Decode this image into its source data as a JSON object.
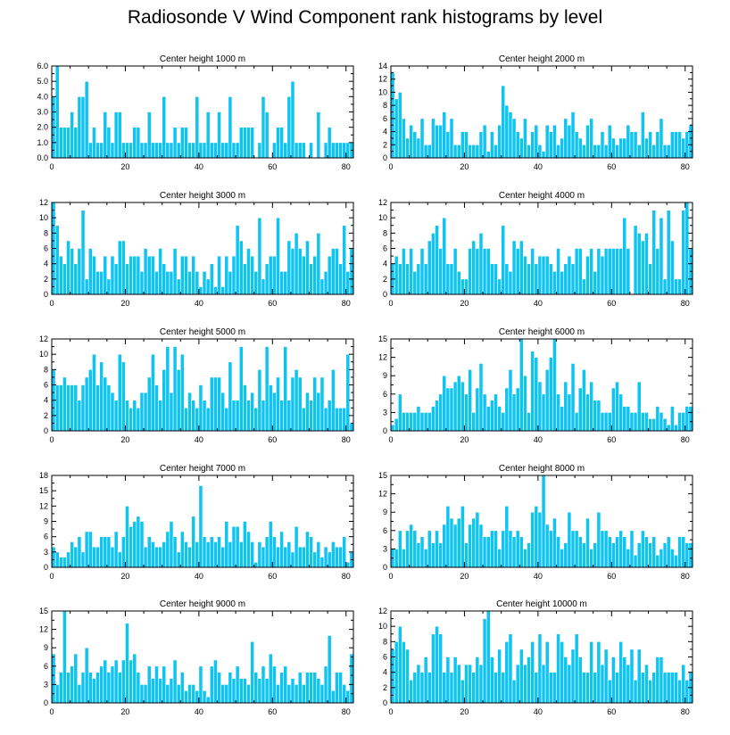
{
  "title": "Radiosonde V Wind Component rank histograms by level",
  "colors": {
    "bar": "#10c4f2",
    "bar_edge": "#ffffff",
    "axis": "#000000"
  },
  "chart_data": [
    {
      "type": "bar",
      "title": "Center height 1000 m",
      "xlim": [
        0,
        82
      ],
      "ylim": [
        0,
        6
      ],
      "x_ticks": [
        0,
        20,
        40,
        60,
        80
      ],
      "y_ticks": [
        "0.0",
        "1.0",
        "2.0",
        "3.0",
        "4.0",
        "5.0",
        "6.0"
      ],
      "y_tick_values": [
        0,
        1,
        2,
        3,
        4,
        5,
        6
      ],
      "values": [
        4,
        6,
        2,
        2,
        2,
        3,
        2,
        4,
        4,
        5,
        1,
        2,
        1,
        1,
        3,
        2,
        1,
        3,
        3,
        1,
        1,
        1,
        2,
        2,
        1,
        1,
        3,
        1,
        1,
        1,
        4,
        1,
        1,
        2,
        1,
        2,
        2,
        1,
        1,
        4,
        1,
        1,
        3,
        1,
        1,
        3,
        1,
        1,
        4,
        1,
        1,
        2,
        2,
        2,
        2,
        0,
        1,
        4,
        3,
        0,
        1,
        2,
        2,
        1,
        4,
        5,
        1,
        1,
        1,
        0,
        1,
        0,
        3,
        0,
        1,
        2,
        1,
        1,
        1,
        1,
        1,
        1
      ]
    },
    {
      "type": "bar",
      "title": "Center height 2000 m",
      "xlim": [
        0,
        82
      ],
      "ylim": [
        0,
        14
      ],
      "x_ticks": [
        0,
        20,
        40,
        60,
        80
      ],
      "y_ticks": [
        "0",
        "2",
        "4",
        "6",
        "8",
        "10",
        "12",
        "14"
      ],
      "y_tick_values": [
        0,
        2,
        4,
        6,
        8,
        10,
        12,
        14
      ],
      "values": [
        13,
        9,
        10,
        6,
        3,
        5,
        4,
        3,
        6,
        2,
        2,
        6,
        5,
        5,
        7,
        4,
        6,
        2,
        2,
        4,
        4,
        2,
        2,
        2,
        4,
        5,
        1,
        4,
        2,
        5,
        11,
        8,
        7,
        6,
        4,
        3,
        6,
        2,
        4,
        5,
        2,
        1,
        5,
        4,
        5,
        2,
        3,
        6,
        5,
        7,
        4,
        3,
        2,
        5,
        6,
        2,
        2,
        4,
        2,
        5,
        3,
        2,
        3,
        3,
        5,
        4,
        4,
        2,
        7,
        3,
        4,
        2,
        4,
        6,
        2,
        2,
        4,
        4,
        4,
        3,
        4,
        5
      ]
    },
    {
      "type": "bar",
      "title": "Center height 3000 m",
      "xlim": [
        0,
        82
      ],
      "ylim": [
        0,
        12
      ],
      "x_ticks": [
        0,
        20,
        40,
        60,
        80
      ],
      "y_ticks": [
        "0",
        "2",
        "4",
        "6",
        "8",
        "10",
        "12"
      ],
      "y_tick_values": [
        0,
        2,
        4,
        6,
        8,
        10,
        12
      ],
      "values": [
        12,
        9,
        5,
        4,
        7,
        6,
        4,
        6,
        11,
        2,
        6,
        5,
        3,
        3,
        5,
        2,
        5,
        4,
        7,
        7,
        4,
        5,
        5,
        5,
        3,
        6,
        5,
        5,
        3,
        6,
        4,
        3,
        3,
        6,
        2,
        5,
        5,
        3,
        5,
        3,
        1,
        3,
        2,
        4,
        1,
        5,
        1,
        5,
        3,
        5,
        9,
        7,
        4,
        6,
        5,
        3,
        10,
        2,
        4,
        5,
        5,
        10,
        3,
        3,
        7,
        6,
        8,
        6,
        5,
        7,
        4,
        5,
        8,
        2,
        3,
        5,
        6,
        6,
        4,
        9,
        3,
        6
      ]
    },
    {
      "type": "bar",
      "title": "Center height 4000 m",
      "xlim": [
        0,
        82
      ],
      "ylim": [
        0,
        12
      ],
      "x_ticks": [
        0,
        20,
        40,
        60,
        80
      ],
      "y_ticks": [
        "0",
        "2",
        "4",
        "6",
        "8",
        "10",
        "12"
      ],
      "y_tick_values": [
        0,
        2,
        4,
        6,
        8,
        10,
        12
      ],
      "values": [
        4,
        5,
        4,
        6,
        4,
        6,
        3,
        4,
        6,
        4,
        7,
        8,
        9,
        6,
        10,
        4,
        4,
        6,
        3,
        2,
        2,
        6,
        7,
        6,
        8,
        6,
        6,
        4,
        4,
        2,
        9,
        4,
        3,
        7,
        6,
        7,
        5,
        4,
        6,
        4,
        5,
        5,
        5,
        4,
        3,
        6,
        3,
        4,
        5,
        4,
        6,
        6,
        2,
        5,
        6,
        3,
        6,
        5,
        6,
        6,
        6,
        6,
        6,
        10,
        6,
        0,
        9,
        8,
        7,
        8,
        4,
        11,
        6,
        10,
        2,
        11,
        7,
        2,
        2,
        11,
        12,
        6
      ]
    },
    {
      "type": "bar",
      "title": "Center height 5000 m",
      "xlim": [
        0,
        82
      ],
      "ylim": [
        0,
        12
      ],
      "x_ticks": [
        0,
        20,
        40,
        60,
        80
      ],
      "y_ticks": [
        "0",
        "2",
        "4",
        "6",
        "8",
        "10",
        "12"
      ],
      "y_tick_values": [
        0,
        2,
        4,
        6,
        8,
        10,
        12
      ],
      "values": [
        8,
        6,
        6,
        7,
        6,
        6,
        6,
        4,
        6,
        7,
        8,
        10,
        6,
        9,
        7,
        6,
        5,
        4,
        10,
        9,
        4,
        3,
        4,
        3,
        5,
        5,
        7,
        10,
        6,
        4,
        8,
        11,
        5,
        11,
        8,
        10,
        3,
        5,
        4,
        3,
        6,
        4,
        3,
        7,
        7,
        7,
        5,
        3,
        9,
        4,
        4,
        11,
        6,
        4,
        5,
        3,
        8,
        4,
        11,
        6,
        5,
        7,
        4,
        11,
        4,
        7,
        8,
        7,
        3,
        5,
        4,
        7,
        5,
        7,
        3,
        4,
        8,
        3,
        3,
        3,
        10,
        1
      ]
    },
    {
      "type": "bar",
      "title": "Center height 6000 m",
      "xlim": [
        0,
        82
      ],
      "ylim": [
        0,
        15
      ],
      "x_ticks": [
        0,
        20,
        40,
        60,
        80
      ],
      "y_ticks": [
        "0",
        "3",
        "6",
        "9",
        "12",
        "15"
      ],
      "y_tick_values": [
        0,
        3,
        6,
        9,
        12,
        15
      ],
      "values": [
        1,
        2,
        6,
        3,
        3,
        3,
        3,
        4,
        3,
        3,
        3,
        4,
        5,
        6,
        9,
        7,
        7,
        8,
        9,
        8,
        6,
        10,
        3,
        7,
        11,
        6,
        4,
        5,
        6,
        4,
        3,
        7,
        10,
        6,
        7,
        15,
        9,
        3,
        13,
        12,
        8,
        6,
        10,
        12,
        15,
        6,
        4,
        8,
        6,
        11,
        3,
        7,
        10,
        6,
        8,
        5,
        5,
        3,
        3,
        3,
        7,
        8,
        6,
        4,
        4,
        3,
        3,
        8,
        3,
        3,
        2,
        2,
        4,
        3,
        2,
        1,
        4,
        1,
        3,
        3,
        4,
        4
      ]
    },
    {
      "type": "bar",
      "title": "Center height 7000 m",
      "xlim": [
        0,
        82
      ],
      "ylim": [
        0,
        18
      ],
      "x_ticks": [
        0,
        20,
        40,
        60,
        80
      ],
      "y_ticks": [
        "0",
        "3",
        "6",
        "9",
        "12",
        "15",
        "18"
      ],
      "y_tick_values": [
        0,
        3,
        6,
        9,
        12,
        15,
        18
      ],
      "values": [
        4,
        3,
        2,
        2,
        3,
        5,
        4,
        6,
        3,
        7,
        7,
        4,
        4,
        6,
        6,
        6,
        4,
        7,
        3,
        6,
        12,
        8,
        9,
        10,
        9,
        4,
        6,
        5,
        4,
        4,
        5,
        7,
        9,
        6,
        3,
        7,
        5,
        4,
        10,
        5,
        16,
        6,
        5,
        6,
        5,
        6,
        4,
        9,
        5,
        8,
        8,
        5,
        9,
        7,
        5,
        1,
        5,
        4,
        6,
        9,
        6,
        4,
        7,
        4,
        5,
        3,
        8,
        4,
        4,
        7,
        6,
        3,
        5,
        2,
        4,
        3,
        5,
        4,
        4,
        6,
        1,
        3
      ]
    },
    {
      "type": "bar",
      "title": "Center height 8000 m",
      "xlim": [
        0,
        82
      ],
      "ylim": [
        0,
        15
      ],
      "x_ticks": [
        0,
        20,
        40,
        60,
        80
      ],
      "y_ticks": [
        "0",
        "3",
        "6",
        "9",
        "12",
        "15"
      ],
      "y_tick_values": [
        0,
        3,
        6,
        9,
        12,
        15
      ],
      "values": [
        3,
        3,
        6,
        3,
        6,
        7,
        6,
        4,
        5,
        3,
        6,
        4,
        6,
        4,
        7,
        10,
        8,
        7,
        8,
        10,
        4,
        7,
        8,
        9,
        7,
        5,
        5,
        6,
        6,
        3,
        6,
        10,
        6,
        5,
        6,
        5,
        3,
        4,
        9,
        10,
        9,
        15,
        7,
        6,
        8,
        5,
        3,
        4,
        9,
        6,
        6,
        5,
        4,
        8,
        3,
        4,
        9,
        6,
        6,
        5,
        4,
        5,
        6,
        5,
        3,
        6,
        2,
        4,
        6,
        5,
        4,
        5,
        2,
        3,
        4,
        5,
        3,
        2,
        5,
        5,
        4,
        4
      ]
    },
    {
      "type": "bar",
      "title": "Center height 9000 m",
      "xlim": [
        0,
        82
      ],
      "ylim": [
        0,
        15
      ],
      "x_ticks": [
        0,
        20,
        40,
        60,
        80
      ],
      "y_ticks": [
        "0",
        "3",
        "6",
        "9",
        "12",
        "15"
      ],
      "y_tick_values": [
        0,
        3,
        6,
        9,
        12,
        15
      ],
      "values": [
        8,
        3,
        5,
        15,
        5,
        6,
        8,
        3,
        5,
        9,
        5,
        4,
        5,
        6,
        7,
        5,
        6,
        7,
        5,
        7,
        13,
        7,
        8,
        5,
        3,
        3,
        6,
        4,
        6,
        4,
        6,
        3,
        4,
        7,
        3,
        5,
        2,
        3,
        3,
        2,
        6,
        2,
        1,
        6,
        7,
        5,
        3,
        3,
        5,
        4,
        6,
        4,
        4,
        3,
        10,
        5,
        4,
        6,
        4,
        8,
        6,
        3,
        5,
        6,
        3,
        4,
        3,
        5,
        3,
        5,
        5,
        5,
        4,
        3,
        6,
        11,
        2,
        5,
        5,
        3,
        2,
        8
      ]
    },
    {
      "type": "bar",
      "title": "Center height 10000 m",
      "xlim": [
        0,
        82
      ],
      "ylim": [
        0,
        12
      ],
      "x_ticks": [
        0,
        20,
        40,
        60,
        80
      ],
      "y_ticks": [
        "0",
        "2",
        "4",
        "6",
        "8",
        "10",
        "12"
      ],
      "y_tick_values": [
        0,
        2,
        4,
        6,
        8,
        10,
        12
      ],
      "values": [
        7,
        8,
        10,
        8,
        7,
        3,
        4,
        5,
        4,
        6,
        4,
        9,
        10,
        9,
        4,
        6,
        4,
        6,
        5,
        3,
        5,
        5,
        4,
        6,
        5,
        11,
        12,
        6,
        4,
        7,
        4,
        8,
        9,
        3,
        5,
        7,
        5,
        6,
        8,
        4,
        9,
        5,
        8,
        4,
        4,
        9,
        8,
        6,
        5,
        7,
        9,
        6,
        4,
        4,
        8,
        4,
        8,
        5,
        7,
        3,
        6,
        4,
        8,
        6,
        5,
        7,
        3,
        7,
        4,
        5,
        3,
        4,
        6,
        6,
        4,
        4,
        4,
        4,
        3,
        5,
        3,
        4
      ]
    }
  ]
}
